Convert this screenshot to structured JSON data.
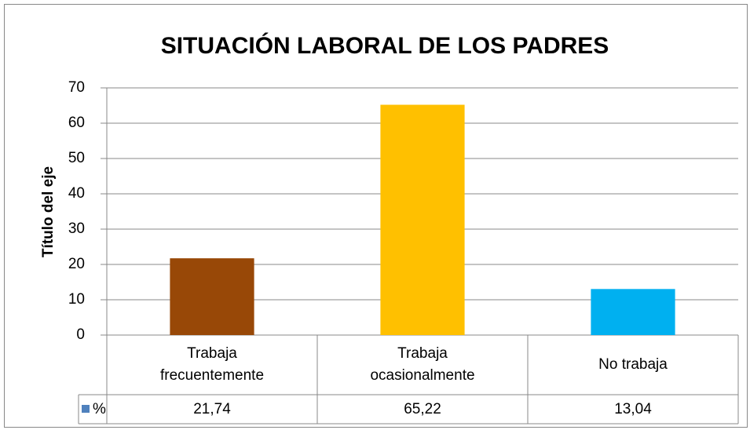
{
  "chart_data": {
    "type": "bar",
    "title": "SITUACIÓN LABORAL DE LOS PADRES",
    "y_label": "Título del eje",
    "categories": [
      "Trabaja frecuentemente",
      "Trabaja ocasionalmente",
      "No trabaja"
    ],
    "colors": [
      "#984807",
      "#ffc000",
      "#00b0f0"
    ],
    "series": [
      {
        "name": "%",
        "color": "#4f81bd",
        "values": [
          21.74,
          65.22,
          13.04
        ],
        "value_labels": [
          "21,74",
          "65,22",
          "13,04"
        ]
      }
    ],
    "ylim": [
      0,
      70
    ],
    "yticks": [
      0,
      10,
      20,
      30,
      40,
      50,
      60,
      70
    ],
    "grid": true
  }
}
